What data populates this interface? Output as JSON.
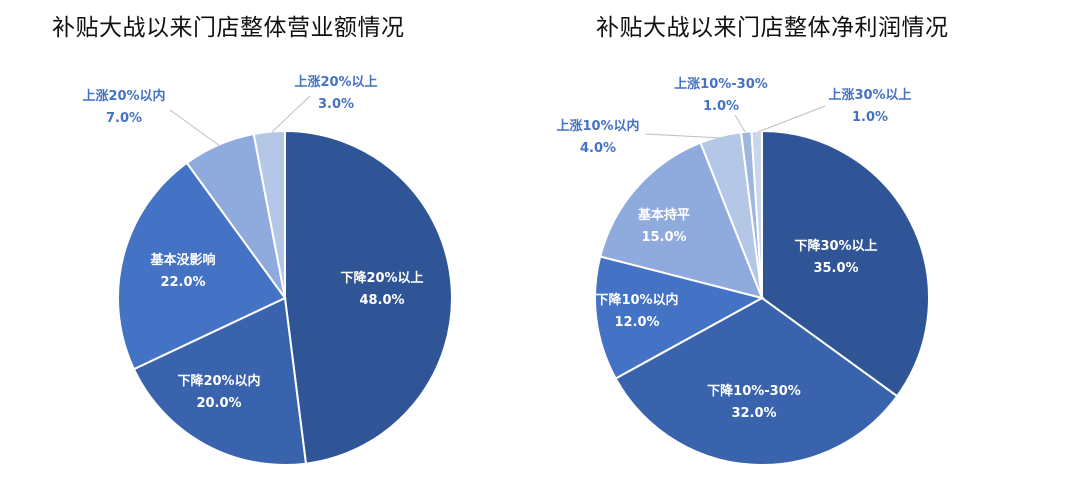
{
  "colors": {
    "c1": "#2f5597",
    "c2": "#3a63ad",
    "c3": "#4472c4",
    "c4": "#8faadc",
    "c5": "#b4c7e7",
    "c6": "#9fb6df",
    "c7": "#c9d6ee",
    "label_outside": "#4472c4",
    "label_inside": "#ffffff",
    "slice_border": "#ffffff"
  },
  "chart_data": [
    {
      "type": "pie",
      "title": "补贴大战以来门店整体营业额情况",
      "slices": [
        {
          "name": "下降20%以上",
          "value": 48.0,
          "label": "48.0%",
          "color": "#2f5597",
          "label_position": "inside"
        },
        {
          "name": "下降20%以内",
          "value": 20.0,
          "label": "20.0%",
          "color": "#3a63ad",
          "label_position": "inside"
        },
        {
          "name": "基本没影响",
          "value": 22.0,
          "label": "22.0%",
          "color": "#4472c4",
          "label_position": "inside"
        },
        {
          "name": "上涨20%以内",
          "value": 7.0,
          "label": "7.0%",
          "color": "#8faadc",
          "label_position": "outside"
        },
        {
          "name": "上涨20%以上",
          "value": 3.0,
          "label": "3.0%",
          "color": "#b4c7e7",
          "label_position": "outside"
        }
      ]
    },
    {
      "type": "pie",
      "title": "补贴大战以来门店整体净利润情况",
      "slices": [
        {
          "name": "下降30%以上",
          "value": 35.0,
          "label": "35.0%",
          "color": "#2f5597",
          "label_position": "inside"
        },
        {
          "name": "下降10%-30%",
          "value": 32.0,
          "label": "32.0%",
          "color": "#3a63ad",
          "label_position": "inside"
        },
        {
          "name": "下降10%以内",
          "value": 12.0,
          "label": "12.0%",
          "color": "#4472c4",
          "label_position": "inside"
        },
        {
          "name": "基本持平",
          "value": 15.0,
          "label": "15.0%",
          "color": "#8faadc",
          "label_position": "inside"
        },
        {
          "name": "上涨10%以内",
          "value": 4.0,
          "label": "4.0%",
          "color": "#b4c7e7",
          "label_position": "outside"
        },
        {
          "name": "上涨10%-30%",
          "value": 1.0,
          "label": "1.0%",
          "color": "#9fb6df",
          "label_position": "outside"
        },
        {
          "name": "上涨30%以上",
          "value": 1.0,
          "label": "1.0%",
          "color": "#c9d6ee",
          "label_position": "outside"
        }
      ]
    }
  ]
}
